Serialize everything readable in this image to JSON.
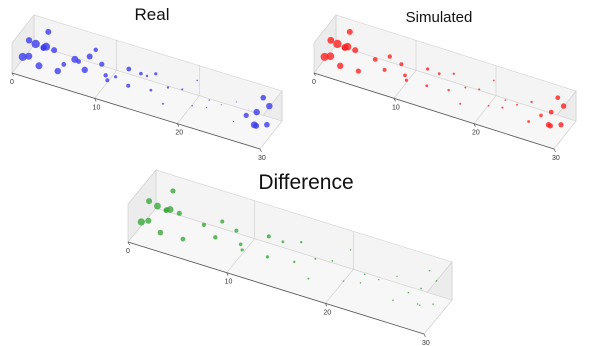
{
  "chart_data": [
    {
      "type": "scatter",
      "title": "Real",
      "color": "#3b3bf0",
      "x_ticks": [
        "0",
        "10",
        "20",
        "30"
      ],
      "xlim": [
        0,
        30
      ],
      "grid": true,
      "points": [
        [
          0.5,
          0.3,
          0.3,
          4.0
        ],
        [
          1,
          0.7,
          0.4,
          4.2
        ],
        [
          1.5,
          0.2,
          0.5,
          3.5
        ],
        [
          2,
          0.8,
          0.3,
          4.0
        ],
        [
          2.5,
          0.5,
          0.6,
          3.2
        ],
        [
          3,
          0.1,
          0.4,
          3.5
        ],
        [
          3.5,
          0.6,
          0.5,
          3.0
        ],
        [
          1,
          0.4,
          0.8,
          3.2
        ],
        [
          2,
          0.9,
          0.7,
          3.0
        ],
        [
          3,
          0.3,
          0.8,
          2.8
        ],
        [
          5,
          0.2,
          0.3,
          3.2
        ],
        [
          6,
          0.6,
          0.4,
          3.5
        ],
        [
          7,
          0.9,
          0.3,
          3.0
        ],
        [
          8,
          0.3,
          0.5,
          3.2
        ],
        [
          9,
          0.7,
          0.4,
          2.6
        ],
        [
          6,
          0.1,
          0.7,
          2.4
        ],
        [
          8,
          0.8,
          0.7,
          2.2
        ],
        [
          7,
          0.4,
          0.6,
          2.4
        ],
        [
          10,
          0.5,
          0.3,
          2.2
        ],
        [
          11,
          0.2,
          0.5,
          2.0
        ],
        [
          12,
          0.8,
          0.4,
          2.4
        ],
        [
          13,
          0.4,
          0.3,
          2.0
        ],
        [
          14,
          0.6,
          0.6,
          1.8
        ],
        [
          12,
          0.2,
          0.7,
          1.6
        ],
        [
          15,
          0.9,
          0.4,
          1.6
        ],
        [
          16,
          0.3,
          0.5,
          1.4
        ],
        [
          17,
          0.7,
          0.3,
          1.2
        ],
        [
          15,
          0.5,
          0.7,
          1.2
        ],
        [
          18,
          0.1,
          0.4,
          1.0
        ],
        [
          19,
          0.6,
          0.5,
          1.0
        ],
        [
          20,
          0.9,
          0.6,
          0.8
        ],
        [
          21,
          0.3,
          0.4,
          0.8
        ],
        [
          22,
          0.7,
          0.3,
          0.7
        ],
        [
          23,
          0.2,
          0.6,
          0.7
        ],
        [
          24,
          0.5,
          0.5,
          0.6
        ],
        [
          25,
          0.8,
          0.4,
          0.6
        ],
        [
          26,
          0.3,
          0.3,
          0.7
        ],
        [
          27,
          0.5,
          0.4,
          2.6
        ],
        [
          28,
          0.6,
          0.5,
          3.2
        ],
        [
          28.5,
          0.3,
          0.4,
          3.4
        ],
        [
          29,
          0.8,
          0.6,
          3.2
        ],
        [
          29.5,
          0.5,
          0.3,
          2.8
        ],
        [
          28,
          0.9,
          0.7,
          2.8
        ],
        [
          29,
          0.2,
          0.5,
          3.0
        ]
      ]
    },
    {
      "type": "scatter",
      "title": "Simulated",
      "color": "#ff2020",
      "x_ticks": [
        "0",
        "10",
        "20",
        "30"
      ],
      "xlim": [
        0,
        30
      ],
      "grid": true,
      "points": [
        [
          0.5,
          0.3,
          0.3,
          4.0
        ],
        [
          1,
          0.7,
          0.4,
          4.2
        ],
        [
          1.5,
          0.2,
          0.5,
          3.8
        ],
        [
          2,
          0.8,
          0.3,
          3.8
        ],
        [
          2.5,
          0.5,
          0.6,
          3.4
        ],
        [
          3,
          0.1,
          0.4,
          3.2
        ],
        [
          3.5,
          0.6,
          0.5,
          3.0
        ],
        [
          1,
          0.4,
          0.8,
          3.4
        ],
        [
          2,
          0.9,
          0.7,
          3.0
        ],
        [
          3,
          0.3,
          0.8,
          2.6
        ],
        [
          5,
          0.2,
          0.3,
          2.6
        ],
        [
          6,
          0.6,
          0.4,
          2.4
        ],
        [
          7,
          0.9,
          0.3,
          2.2
        ],
        [
          8,
          0.3,
          0.5,
          2.0
        ],
        [
          9,
          0.7,
          0.4,
          2.0
        ],
        [
          10,
          0.5,
          0.3,
          1.8
        ],
        [
          11,
          0.2,
          0.5,
          1.6
        ],
        [
          12,
          0.8,
          0.4,
          1.6
        ],
        [
          13,
          0.4,
          0.3,
          1.4
        ],
        [
          14,
          0.6,
          0.6,
          1.4
        ],
        [
          15,
          0.9,
          0.4,
          1.2
        ],
        [
          16,
          0.3,
          0.5,
          1.2
        ],
        [
          17,
          0.7,
          0.3,
          1.0
        ],
        [
          18,
          0.1,
          0.4,
          1.0
        ],
        [
          19,
          0.6,
          0.5,
          1.0
        ],
        [
          20,
          0.9,
          0.6,
          0.9
        ],
        [
          21,
          0.3,
          0.4,
          0.9
        ],
        [
          22,
          0.7,
          0.3,
          0.9
        ],
        [
          23,
          0.2,
          0.6,
          1.0
        ],
        [
          24,
          0.5,
          0.5,
          1.0
        ],
        [
          25,
          0.8,
          0.4,
          1.2
        ],
        [
          26,
          0.3,
          0.3,
          1.4
        ],
        [
          27,
          0.5,
          0.4,
          1.8
        ],
        [
          28,
          0.6,
          0.5,
          2.4
        ],
        [
          28.5,
          0.3,
          0.4,
          2.8
        ],
        [
          29,
          0.8,
          0.6,
          2.8
        ],
        [
          29.5,
          0.5,
          0.3,
          2.6
        ],
        [
          28,
          0.9,
          0.7,
          2.4
        ],
        [
          29,
          0.2,
          0.5,
          2.6
        ]
      ]
    },
    {
      "type": "scatter",
      "title": "Difference",
      "color": "#3aa83a",
      "x_ticks": [
        "0",
        "10",
        "20",
        "30"
      ],
      "xlim": [
        0,
        30
      ],
      "grid": true,
      "points": [
        [
          0.5,
          0.3,
          0.3,
          3.6
        ],
        [
          1,
          0.7,
          0.4,
          3.4
        ],
        [
          1.5,
          0.2,
          0.5,
          3.0
        ],
        [
          2,
          0.8,
          0.3,
          3.4
        ],
        [
          2.5,
          0.5,
          0.6,
          2.8
        ],
        [
          3,
          0.1,
          0.4,
          2.8
        ],
        [
          3.5,
          0.6,
          0.5,
          2.6
        ],
        [
          1,
          0.4,
          0.8,
          3.0
        ],
        [
          2,
          0.9,
          0.7,
          2.6
        ],
        [
          3,
          0.3,
          0.8,
          2.4
        ],
        [
          5,
          0.2,
          0.3,
          2.4
        ],
        [
          6,
          0.6,
          0.4,
          2.2
        ],
        [
          7,
          0.9,
          0.3,
          2.0
        ],
        [
          8,
          0.3,
          0.5,
          2.2
        ],
        [
          9,
          0.7,
          0.4,
          2.0
        ],
        [
          10,
          0.5,
          0.3,
          1.8
        ],
        [
          11,
          0.2,
          0.5,
          1.6
        ],
        [
          12,
          0.8,
          0.4,
          2.0
        ],
        [
          13,
          0.4,
          0.3,
          1.6
        ],
        [
          14,
          0.6,
          0.6,
          1.4
        ],
        [
          15,
          0.9,
          0.4,
          1.2
        ],
        [
          16,
          0.3,
          0.5,
          1.2
        ],
        [
          17,
          0.7,
          0.3,
          1.0
        ],
        [
          18,
          0.1,
          0.4,
          1.0
        ],
        [
          19,
          0.6,
          0.5,
          0.9
        ],
        [
          20,
          0.9,
          0.6,
          0.8
        ],
        [
          21,
          0.3,
          0.4,
          0.8
        ],
        [
          22,
          0.7,
          0.3,
          0.8
        ],
        [
          23,
          0.2,
          0.6,
          0.8
        ],
        [
          24,
          0.5,
          0.5,
          0.7
        ],
        [
          25,
          0.8,
          0.4,
          0.7
        ],
        [
          26,
          0.3,
          0.3,
          0.8
        ],
        [
          27,
          0.5,
          0.4,
          0.8
        ],
        [
          28,
          0.6,
          0.5,
          0.9
        ],
        [
          28.5,
          0.3,
          0.4,
          0.8
        ],
        [
          29,
          0.8,
          0.6,
          0.9
        ],
        [
          29.5,
          0.5,
          0.3,
          0.8
        ],
        [
          28,
          0.9,
          0.7,
          0.8
        ],
        [
          29,
          0.2,
          0.5,
          0.8
        ]
      ]
    }
  ]
}
